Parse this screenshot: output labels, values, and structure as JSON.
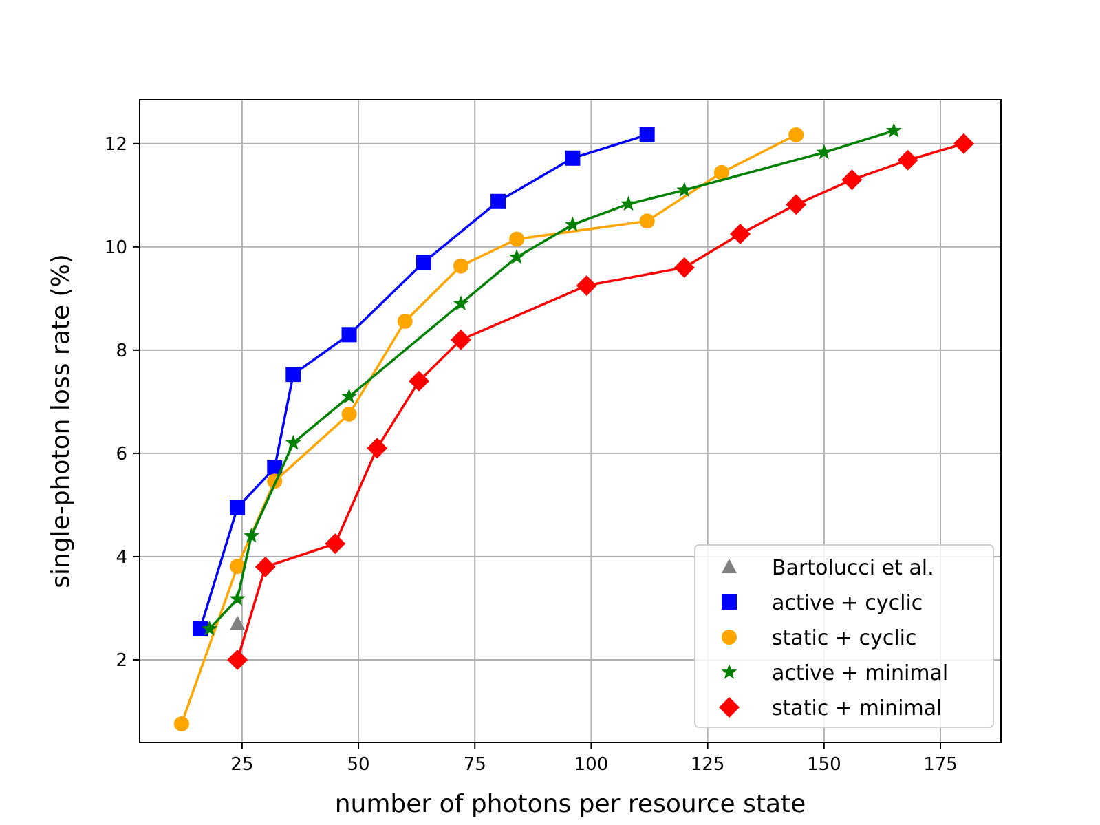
{
  "chart_data": {
    "type": "line",
    "title": "",
    "xlabel": "number of photons per resource state",
    "ylabel": "single-photon loss rate (%)",
    "xlim": [
      3,
      188
    ],
    "ylim": [
      0.4,
      12.85
    ],
    "xticks": [
      25,
      50,
      75,
      100,
      125,
      150,
      175
    ],
    "yticks": [
      2,
      4,
      6,
      8,
      10,
      12
    ],
    "grid": true,
    "legend_position": "lower right",
    "series": [
      {
        "name": "Bartolucci et al.",
        "color": "#808080",
        "marker": "triangle",
        "line": false,
        "x": [
          24
        ],
        "y": [
          2.7
        ]
      },
      {
        "name": "active + cyclic",
        "color": "#0000ff",
        "marker": "square",
        "line": true,
        "x": [
          16,
          24,
          32,
          36,
          48,
          64,
          80,
          96,
          112
        ],
        "y": [
          2.6,
          4.95,
          5.72,
          7.53,
          8.3,
          9.7,
          10.88,
          11.72,
          12.17
        ]
      },
      {
        "name": "static + cyclic",
        "color": "#ffa500",
        "marker": "circle",
        "line": true,
        "x": [
          12,
          24,
          32,
          48,
          60,
          72,
          84,
          112,
          128,
          144
        ],
        "y": [
          0.76,
          3.81,
          5.46,
          6.76,
          8.56,
          9.63,
          10.15,
          10.5,
          11.44,
          12.17
        ]
      },
      {
        "name": "active + minimal",
        "color": "#008000",
        "marker": "star",
        "line": true,
        "x": [
          18,
          24,
          27,
          36,
          48,
          72,
          84,
          96,
          108,
          120,
          150,
          165
        ],
        "y": [
          2.6,
          3.18,
          4.4,
          6.2,
          7.1,
          8.9,
          9.8,
          10.43,
          10.83,
          11.1,
          11.83,
          12.25
        ]
      },
      {
        "name": "static + minimal",
        "color": "#ff0000",
        "marker": "diamond",
        "line": true,
        "x": [
          24,
          30,
          45,
          54,
          63,
          72,
          99,
          120,
          132,
          144,
          156,
          168,
          180
        ],
        "y": [
          2.0,
          3.8,
          4.25,
          6.1,
          7.4,
          8.2,
          9.25,
          9.6,
          10.25,
          10.82,
          11.3,
          11.68,
          12.0
        ]
      }
    ]
  }
}
